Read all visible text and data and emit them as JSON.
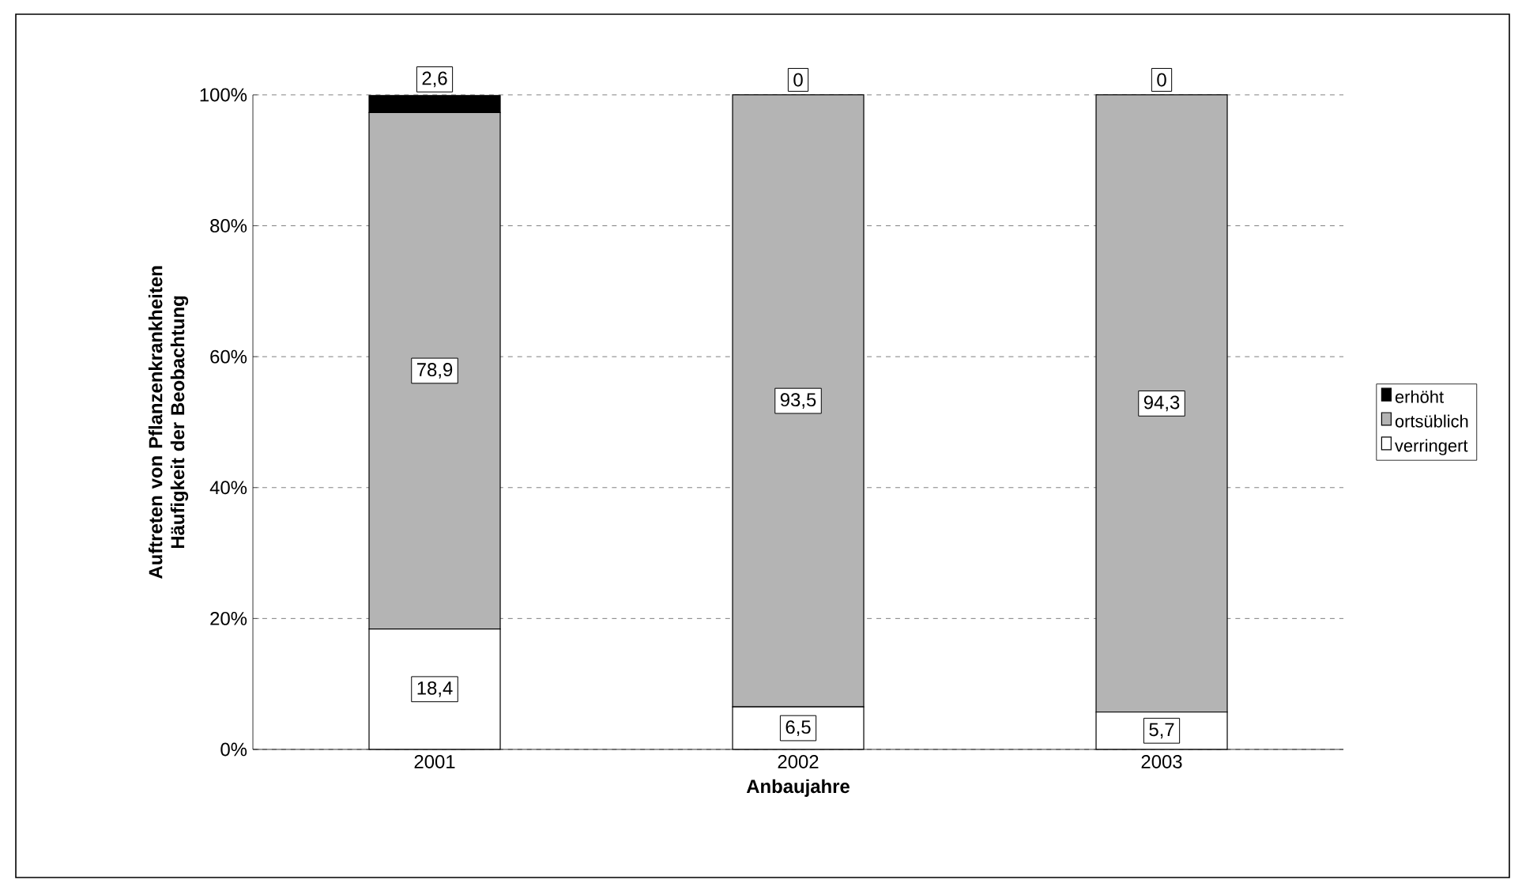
{
  "chart_data": {
    "type": "bar",
    "stacked": true,
    "xlabel": "Anbaujahre",
    "ylabel": "Auftreten von Pflanzenkrankheiten Häufigkeit der Beobachtung",
    "categories": [
      "2001",
      "2002",
      "2003"
    ],
    "series": [
      {
        "name": "verringert",
        "color": "#ffffff",
        "values": [
          18.4,
          6.5,
          5.7
        ],
        "value_labels": [
          "18,4",
          "6,5",
          "5,7"
        ]
      },
      {
        "name": "ortsüblich",
        "color": "#b4b4b4",
        "values": [
          78.9,
          93.5,
          94.3
        ],
        "value_labels": [
          "78,9",
          "93,5",
          "94,3"
        ]
      },
      {
        "name": "erhöht",
        "color": "#000000",
        "values": [
          2.6,
          0,
          0
        ],
        "value_labels": [
          "2,6",
          "0",
          "0"
        ]
      }
    ],
    "ylim": [
      0,
      100
    ],
    "yticks": [
      {
        "value": 0,
        "label": "0%"
      },
      {
        "value": 20,
        "label": "20%"
      },
      {
        "value": 40,
        "label": "40%"
      },
      {
        "value": 60,
        "label": "60%"
      },
      {
        "value": 80,
        "label": "80%"
      },
      {
        "value": 100,
        "label": "100%"
      }
    ],
    "grid": "y",
    "legend": "right"
  }
}
